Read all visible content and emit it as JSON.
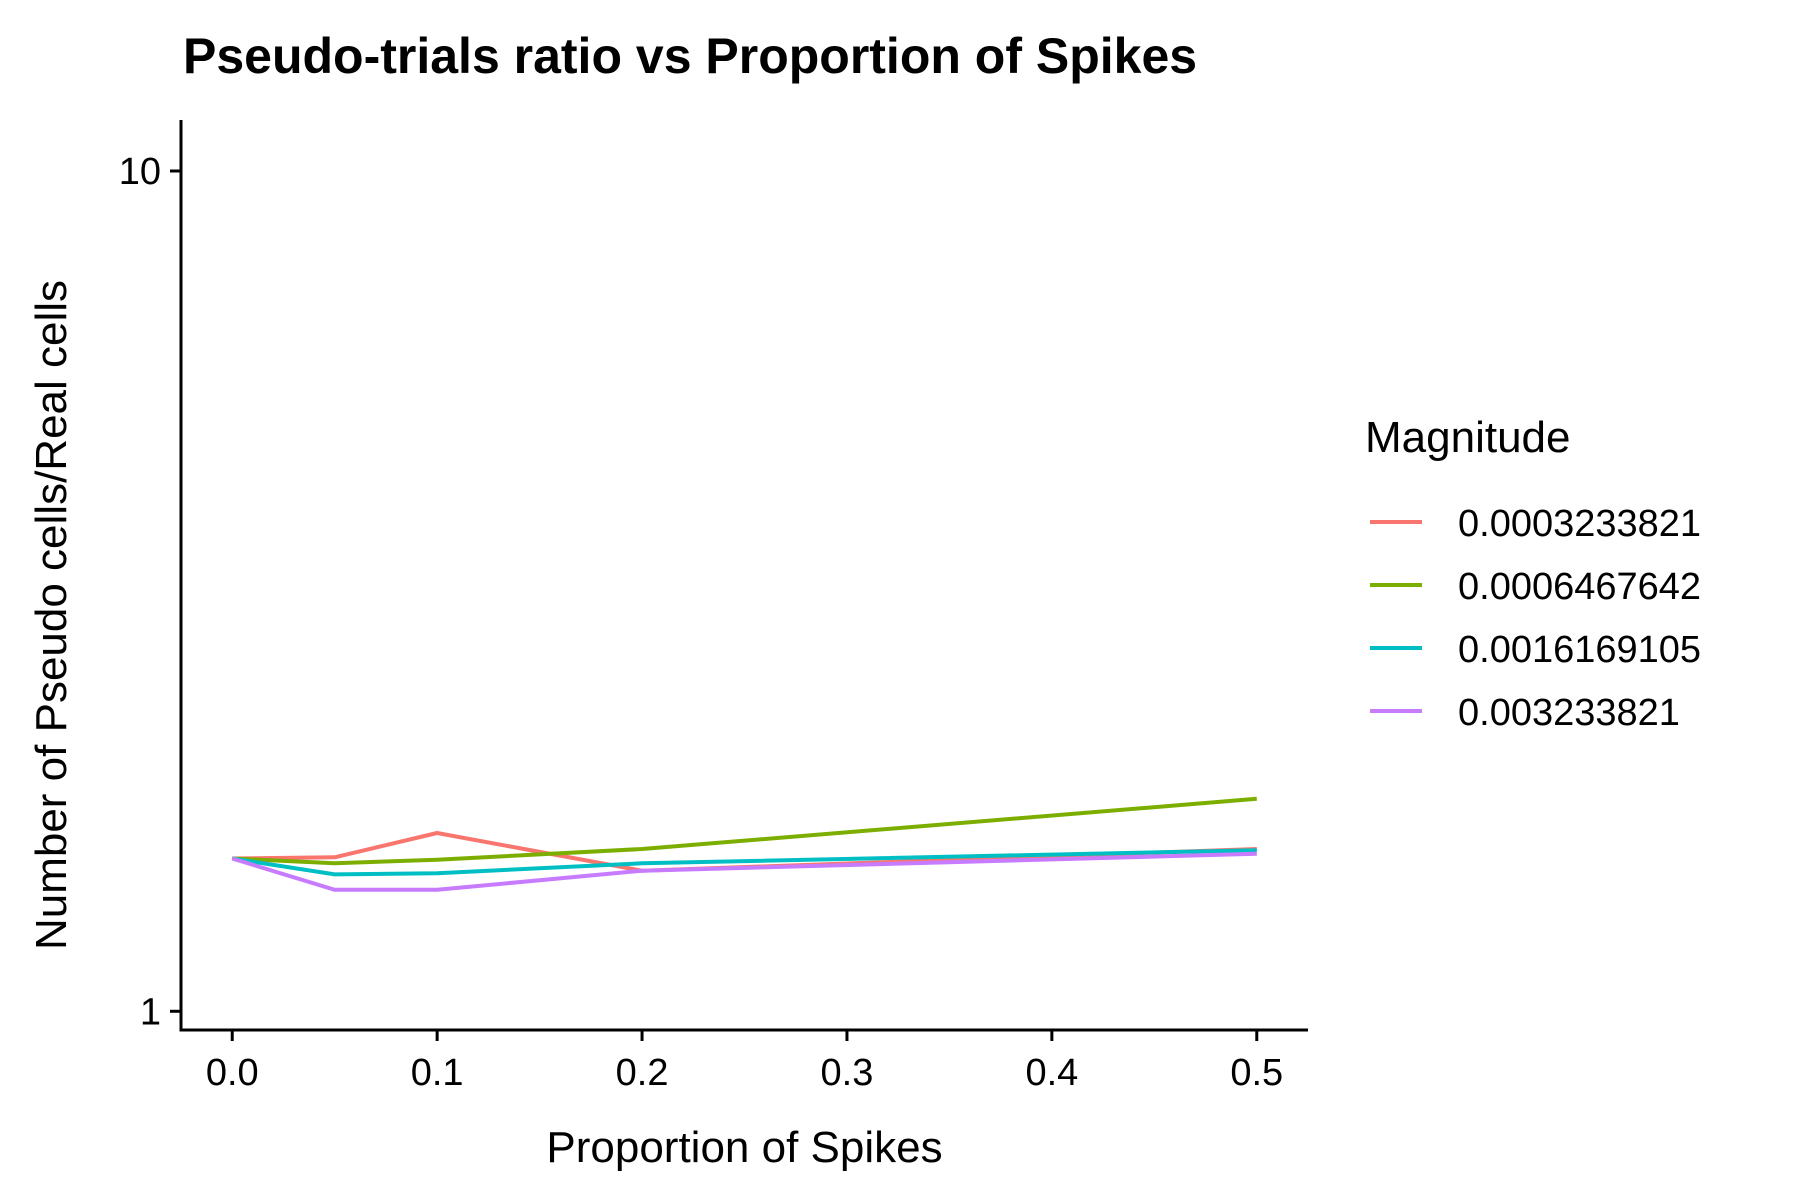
{
  "chart_data": {
    "type": "line",
    "title": "Pseudo-trials ratio vs Proportion of Spikes",
    "xlabel": "Proportion of Spikes",
    "ylabel": "Number of Pseudo cells/Real cells",
    "y_scale": "log10",
    "xlim": [
      -0.025,
      0.525
    ],
    "ylim": [
      0.95,
      11.5
    ],
    "x_ticks": [
      0.0,
      0.1,
      0.2,
      0.3,
      0.4,
      0.5
    ],
    "x_tick_labels": [
      "0.0",
      "0.1",
      "0.2",
      "0.3",
      "0.4",
      "0.5"
    ],
    "y_ticks": [
      1,
      10
    ],
    "y_tick_labels": [
      "1",
      "10"
    ],
    "grid": false,
    "legend": {
      "title": "Magnitude",
      "position": "right"
    },
    "x": [
      0.0,
      0.05,
      0.1,
      0.2,
      0.5
    ],
    "series": [
      {
        "name": "0.0003233821",
        "color": "#F8766D",
        "values": [
          1.52,
          1.525,
          1.63,
          1.47,
          1.56
        ]
      },
      {
        "name": "0.0006467642",
        "color": "#7CAE00",
        "values": [
          1.52,
          1.5,
          1.515,
          1.56,
          1.79
        ]
      },
      {
        "name": "0.0016169105",
        "color": "#00BFC4",
        "values": [
          1.52,
          1.455,
          1.46,
          1.5,
          1.555
        ]
      },
      {
        "name": "0.003233821",
        "color": "#C77CFF",
        "values": [
          1.52,
          1.395,
          1.395,
          1.47,
          1.54
        ]
      }
    ]
  }
}
